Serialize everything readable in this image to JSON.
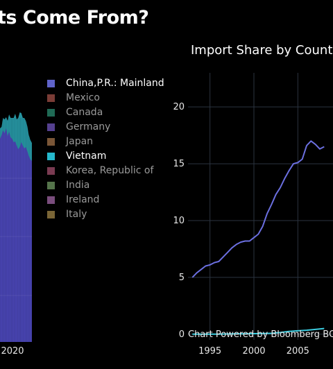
{
  "title_fragment": "ts Come From?",
  "legend": [
    {
      "label": "China,P.R.: Mainland",
      "color": "#5f63c9",
      "active": true
    },
    {
      "label": "Mexico",
      "color": "#7a3c36",
      "active": false
    },
    {
      "label": "Canada",
      "color": "#1f6a55",
      "active": false
    },
    {
      "label": "Germany",
      "color": "#55408f",
      "active": false
    },
    {
      "label": "Japan",
      "color": "#7a5637",
      "active": false
    },
    {
      "label": "Vietnam",
      "color": "#25b8cc",
      "active": true
    },
    {
      "label": "Korea, Republic of",
      "color": "#7a3b52",
      "active": false
    },
    {
      "label": "India",
      "color": "#55744b",
      "active": false
    },
    {
      "label": "Ireland",
      "color": "#7a4d7d",
      "active": false
    },
    {
      "label": "Italy",
      "color": "#7a6536",
      "active": false
    }
  ],
  "chart_data": [
    {
      "type": "area",
      "title": "",
      "x_tick_labels": [
        "2020"
      ],
      "series": [
        {
          "name": "China,P.R.: Mainland",
          "color": "#4a46b5"
        },
        {
          "name": "Vietnam",
          "color": "#2aa5b4"
        }
      ]
    },
    {
      "type": "line",
      "title": "Import Share by Count",
      "x_tick_labels": [
        "1995",
        "2000",
        "2005"
      ],
      "y_tick_labels": [
        "0",
        "5",
        "10",
        "15",
        "20"
      ],
      "xlim": [
        1992.5,
        2009
      ],
      "ylim": [
        -0.5,
        23
      ],
      "grid": true,
      "series": [
        {
          "name": "China,P.R.: Mainland",
          "color": "#6b6fe0",
          "x": [
            1993,
            1993.5,
            1994,
            1994.5,
            1995,
            1995.5,
            1996,
            1996.5,
            1997,
            1997.5,
            1998,
            1998.5,
            1999,
            1999.5,
            2000,
            2000.5,
            2001,
            2001.5,
            2002,
            2002.5,
            2003,
            2003.5,
            2004,
            2004.5,
            2005,
            2005.5,
            2006,
            2006.5,
            2007,
            2007.5,
            2008
          ],
          "y": [
            5.0,
            5.4,
            5.7,
            6.0,
            6.1,
            6.3,
            6.4,
            6.8,
            7.2,
            7.6,
            7.9,
            8.1,
            8.2,
            8.2,
            8.5,
            8.8,
            9.5,
            10.6,
            11.4,
            12.3,
            12.9,
            13.7,
            14.4,
            15.0,
            15.1,
            15.4,
            16.6,
            17.0,
            16.7,
            16.3,
            16.5
          ]
        },
        {
          "name": "Vietnam",
          "color": "#3ccde0",
          "x": [
            1993,
            1994,
            1995,
            1996,
            1997,
            1998,
            1999,
            2000,
            2001,
            2002,
            2003,
            2004,
            2005,
            2006,
            2007,
            2008
          ],
          "y": [
            0.0,
            0.0,
            0.0,
            0.0,
            0.02,
            0.03,
            0.04,
            0.05,
            0.06,
            0.08,
            0.15,
            0.25,
            0.3,
            0.35,
            0.42,
            0.5
          ]
        }
      ]
    }
  ],
  "credit": "Chart Powered by Bloomberg BQ"
}
